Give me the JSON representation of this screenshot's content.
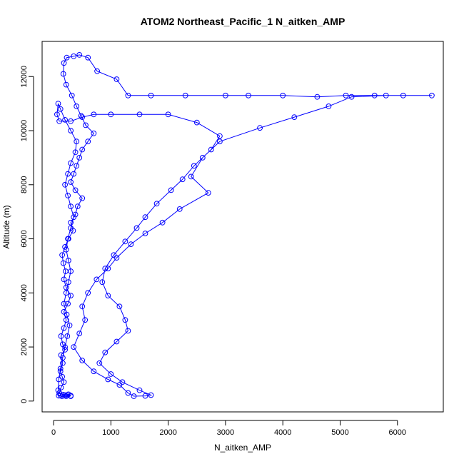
{
  "chart_data": {
    "type": "line",
    "title": "ATOM2 Northeast_Pacific_1 N_aitken_AMP",
    "xlabel": "N_aitken_AMP",
    "ylabel": "Altitude (m)",
    "xlim": [
      -200,
      6800
    ],
    "ylim": [
      -400,
      13300
    ],
    "xticks": [
      "0",
      "1000",
      "2000",
      "3000",
      "4000",
      "5000",
      "6000"
    ],
    "yticks": [
      "0",
      "2000",
      "4000",
      "6000",
      "8000",
      "10000",
      "12000"
    ],
    "marker": "open-circle",
    "grid": false,
    "legend": "none",
    "series": [
      {
        "color": "#0000ff",
        "points": [
          [
            120,
            200
          ],
          [
            220,
            180
          ],
          [
            300,
            200
          ],
          [
            240,
            220
          ],
          [
            160,
            240
          ],
          [
            100,
            300
          ],
          [
            130,
            500
          ],
          [
            180,
            700
          ],
          [
            150,
            900
          ],
          [
            120,
            1100
          ],
          [
            160,
            1400
          ],
          [
            130,
            1700
          ],
          [
            200,
            1900
          ],
          [
            160,
            2100
          ],
          [
            130,
            2400
          ],
          [
            180,
            2700
          ],
          [
            220,
            3000
          ],
          [
            180,
            3300
          ],
          [
            250,
            3600
          ],
          [
            300,
            3900
          ],
          [
            220,
            4200
          ],
          [
            180,
            4500
          ],
          [
            210,
            4800
          ],
          [
            170,
            5100
          ],
          [
            150,
            5400
          ],
          [
            200,
            5700
          ],
          [
            260,
            6000
          ],
          [
            340,
            6300
          ],
          [
            300,
            6600
          ],
          [
            380,
            6900
          ],
          [
            420,
            7200
          ],
          [
            500,
            7500
          ],
          [
            380,
            7800
          ],
          [
            300,
            8100
          ],
          [
            350,
            8400
          ],
          [
            400,
            8700
          ],
          [
            450,
            9000
          ],
          [
            500,
            9300
          ],
          [
            600,
            9600
          ],
          [
            700,
            9900
          ],
          [
            560,
            10200
          ],
          [
            480,
            10550
          ],
          [
            400,
            10900
          ],
          [
            320,
            11300
          ],
          [
            220,
            11700
          ],
          [
            170,
            12100
          ],
          [
            180,
            12500
          ],
          [
            230,
            12700
          ],
          [
            350,
            12750
          ],
          [
            450,
            12800
          ],
          [
            600,
            12700
          ],
          [
            760,
            12200
          ],
          [
            1100,
            11900
          ],
          [
            1300,
            11300
          ],
          [
            1700,
            11300
          ],
          [
            2300,
            11300
          ],
          [
            3000,
            11300
          ],
          [
            3400,
            11300
          ],
          [
            4000,
            11300
          ],
          [
            4600,
            11250
          ],
          [
            5100,
            11300
          ],
          [
            5600,
            11300
          ],
          [
            6100,
            11300
          ],
          [
            6600,
            11300
          ],
          [
            5800,
            11300
          ],
          [
            5200,
            11250
          ],
          [
            4800,
            10900
          ],
          [
            4200,
            10500
          ],
          [
            3600,
            10100
          ],
          [
            2900,
            9600
          ],
          [
            2600,
            9000
          ],
          [
            2400,
            8300
          ],
          [
            2700,
            7700
          ],
          [
            2200,
            7100
          ],
          [
            1900,
            6600
          ],
          [
            1600,
            6200
          ],
          [
            1350,
            5800
          ],
          [
            1100,
            5300
          ],
          [
            950,
            4900
          ],
          [
            750,
            4500
          ],
          [
            600,
            4000
          ],
          [
            500,
            3500
          ],
          [
            550,
            3000
          ],
          [
            450,
            2500
          ],
          [
            350,
            2000
          ],
          [
            500,
            1500
          ],
          [
            700,
            1100
          ],
          [
            950,
            800
          ],
          [
            1150,
            600
          ],
          [
            1300,
            300
          ],
          [
            1400,
            180
          ],
          [
            1600,
            190
          ],
          [
            1700,
            220
          ],
          [
            1500,
            400
          ],
          [
            1200,
            700
          ],
          [
            1000,
            1000
          ],
          [
            800,
            1400
          ],
          [
            900,
            1800
          ],
          [
            1100,
            2200
          ],
          [
            1300,
            2600
          ],
          [
            1250,
            3000
          ],
          [
            1150,
            3500
          ],
          [
            950,
            3900
          ],
          [
            850,
            4400
          ],
          [
            900,
            4900
          ],
          [
            1050,
            5400
          ],
          [
            1250,
            5900
          ],
          [
            1450,
            6400
          ],
          [
            1600,
            6800
          ],
          [
            1800,
            7300
          ],
          [
            2050,
            7800
          ],
          [
            2250,
            8200
          ],
          [
            2450,
            8700
          ],
          [
            2750,
            9300
          ],
          [
            2900,
            9800
          ],
          [
            2500,
            10300
          ],
          [
            2000,
            10600
          ],
          [
            1500,
            10600
          ],
          [
            1000,
            10600
          ],
          [
            700,
            10600
          ],
          [
            500,
            10500
          ],
          [
            300,
            10350
          ],
          [
            100,
            10350
          ],
          [
            60,
            10600
          ],
          [
            80,
            11000
          ],
          [
            120,
            10800
          ],
          [
            200,
            10400
          ],
          [
            300,
            10000
          ],
          [
            400,
            9600
          ],
          [
            380,
            9200
          ],
          [
            300,
            8800
          ],
          [
            250,
            8400
          ],
          [
            200,
            8000
          ],
          [
            250,
            7600
          ],
          [
            300,
            7200
          ],
          [
            350,
            6800
          ],
          [
            300,
            6400
          ],
          [
            250,
            6000
          ],
          [
            220,
            5600
          ],
          [
            260,
            5200
          ],
          [
            300,
            4800
          ],
          [
            260,
            4400
          ],
          [
            220,
            4000
          ],
          [
            180,
            3600
          ],
          [
            230,
            3200
          ],
          [
            280,
            2800
          ],
          [
            240,
            2400
          ],
          [
            200,
            2000
          ],
          [
            160,
            1600
          ],
          [
            120,
            1200
          ],
          [
            90,
            800
          ],
          [
            80,
            400
          ],
          [
            90,
            200
          ],
          [
            150,
            180
          ],
          [
            200,
            220
          ],
          [
            260,
            250
          ],
          [
            300,
            180
          ]
        ]
      }
    ]
  }
}
